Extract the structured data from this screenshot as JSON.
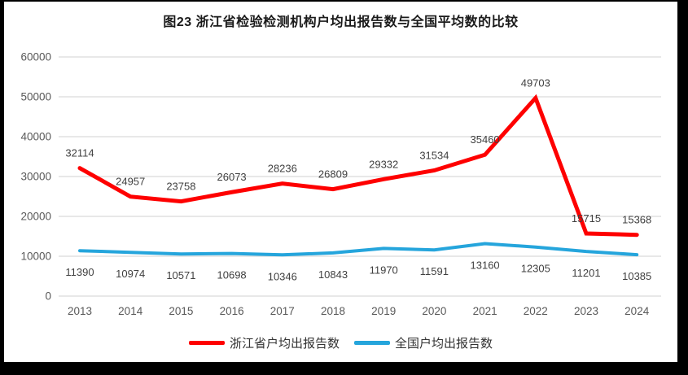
{
  "chart_data": {
    "type": "line",
    "title": "图23  浙江省检验检测机构户均出报告数与全国平均数的比较",
    "categories": [
      "2013",
      "2014",
      "2015",
      "2016",
      "2017",
      "2018",
      "2019",
      "2020",
      "2021",
      "2022",
      "2023",
      "2024"
    ],
    "series": [
      {
        "name": "浙江省户均出报告数",
        "color": "#fe0000",
        "stroke_width": 5,
        "label_position": "above",
        "values": [
          32114,
          24957,
          23758,
          26073,
          28236,
          26809,
          29332,
          31534,
          35460,
          49703,
          15715,
          15368
        ]
      },
      {
        "name": "全国户均出报告数",
        "color": "#25a5dc",
        "stroke_width": 4,
        "label_position": "below",
        "values": [
          11390,
          10974,
          10571,
          10698,
          10346,
          10843,
          11970,
          11591,
          13160,
          12305,
          11201,
          10385
        ]
      }
    ],
    "y_ticks": [
      0,
      10000,
      20000,
      30000,
      40000,
      50000,
      60000
    ],
    "ylim": [
      0,
      60000
    ],
    "grid": true,
    "legend_position": "bottom",
    "colors": {
      "gridline": "#d9d9d9",
      "axis_text": "#595959",
      "data_label": "#404040"
    }
  }
}
